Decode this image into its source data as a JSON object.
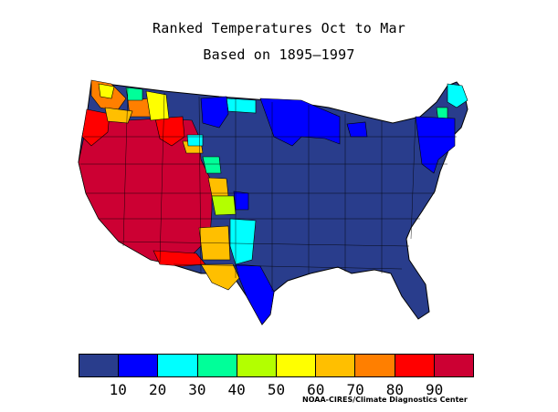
{
  "title_line1": "Ranked Temperatures Oct to Mar",
  "title_line2": "Based on 1895–1997",
  "legend": {
    "colors": [
      "#293d8c",
      "#0000ff",
      "#00ffff",
      "#00ff99",
      "#b3ff00",
      "#ffff00",
      "#ffbf00",
      "#ff7f00",
      "#ff0000",
      "#cc0033"
    ],
    "tick_labels": [
      "10",
      "20",
      "30",
      "40",
      "50",
      "60",
      "70",
      "80",
      "90"
    ]
  },
  "credit": "NOAA-CIRES/Climate Diagnostics Center",
  "map": {
    "region": "Contiguous United States climate divisions",
    "pattern": "Western US mostly ranked 90+ (warmest); central and eastern US mostly ranked below 10 (coldest)"
  }
}
